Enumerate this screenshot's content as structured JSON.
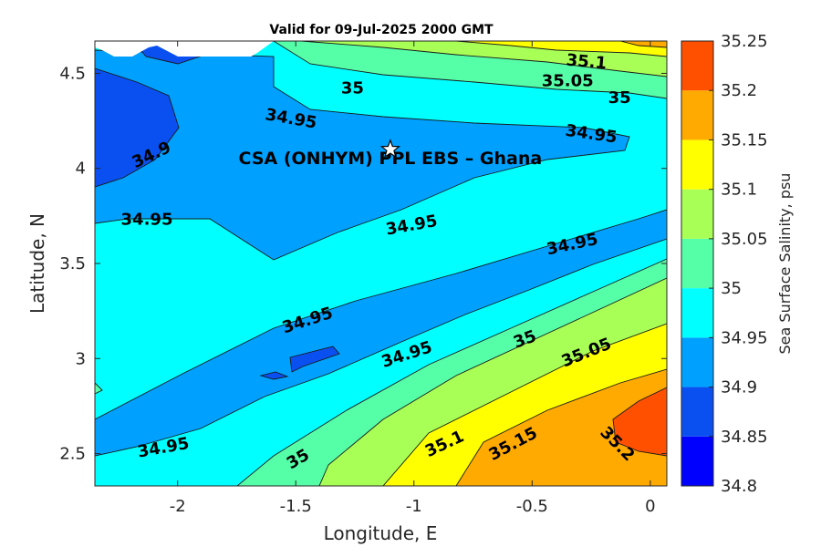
{
  "chart_data": {
    "type": "contour",
    "title": "Valid for 09-Jul-2025 2000 GMT",
    "xlabel": "Longitude, E",
    "ylabel": "Latitude, N",
    "xlim": [
      -2.35,
      0.07
    ],
    "ylim": [
      2.33,
      4.67
    ],
    "x_ticks": [
      -2,
      -1.5,
      -1,
      -0.5,
      0
    ],
    "x_tick_labels": [
      "-2",
      "-1.5",
      "-1",
      "-0.5",
      "0"
    ],
    "y_ticks": [
      2.5,
      3,
      3.5,
      4,
      4.5
    ],
    "y_tick_labels": [
      "2.5",
      "3",
      "3.5",
      "4",
      "4.5"
    ],
    "colorbar": {
      "label": "Sea Surface Salinity, psu",
      "levels": [
        34.8,
        34.85,
        34.9,
        34.95,
        35,
        35.05,
        35.1,
        35.15,
        35.2,
        35.25
      ],
      "tick_labels": [
        "34.8",
        "34.85",
        "34.9",
        "34.95",
        "35",
        "35.05",
        "35.1",
        "35.15",
        "35.2",
        "35.25"
      ],
      "colors": [
        "#0000ff",
        "#0a50f0",
        "#00a0ff",
        "#00ffff",
        "#55ffa8",
        "#a8ff55",
        "#ffff00",
        "#ffaa00",
        "#ff5000"
      ]
    },
    "contour_labels": [
      {
        "text": "35.1",
        "lon": -0.27,
        "lat": 4.56,
        "angle": 5
      },
      {
        "text": "35.05",
        "lon": -0.35,
        "lat": 4.46,
        "angle": 0
      },
      {
        "text": "35",
        "lon": -1.26,
        "lat": 4.42,
        "angle": 0
      },
      {
        "text": "35",
        "lon": -0.13,
        "lat": 4.37,
        "angle": 0
      },
      {
        "text": "34.95",
        "lon": -1.52,
        "lat": 4.26,
        "angle": 10
      },
      {
        "text": "34.95",
        "lon": -0.25,
        "lat": 4.18,
        "angle": 8
      },
      {
        "text": "34.9",
        "lon": -2.11,
        "lat": 4.07,
        "angle": -25
      },
      {
        "text": "34.95",
        "lon": -2.13,
        "lat": 3.73,
        "angle": 0
      },
      {
        "text": "34.95",
        "lon": -1.01,
        "lat": 3.7,
        "angle": -10
      },
      {
        "text": "34.95",
        "lon": -0.33,
        "lat": 3.6,
        "angle": -12
      },
      {
        "text": "34.95",
        "lon": -1.45,
        "lat": 3.2,
        "angle": -18
      },
      {
        "text": "35",
        "lon": -0.53,
        "lat": 3.1,
        "angle": -20
      },
      {
        "text": "34.95",
        "lon": -1.03,
        "lat": 3.02,
        "angle": -18
      },
      {
        "text": "35.05",
        "lon": -0.27,
        "lat": 3.03,
        "angle": -22
      },
      {
        "text": "35.1",
        "lon": -0.87,
        "lat": 2.55,
        "angle": -25
      },
      {
        "text": "35.15",
        "lon": -0.58,
        "lat": 2.55,
        "angle": -28
      },
      {
        "text": "35.2",
        "lon": -0.14,
        "lat": 2.55,
        "angle": 45
      },
      {
        "text": "34.95",
        "lon": -2.06,
        "lat": 2.53,
        "angle": -10
      },
      {
        "text": "35",
        "lon": -1.49,
        "lat": 2.47,
        "angle": -30
      }
    ],
    "annotation": {
      "text": "CSA (ONHYM) PPL EBS  – Ghana",
      "lon": -1.1,
      "lat": 4.1,
      "marker": "star"
    }
  }
}
